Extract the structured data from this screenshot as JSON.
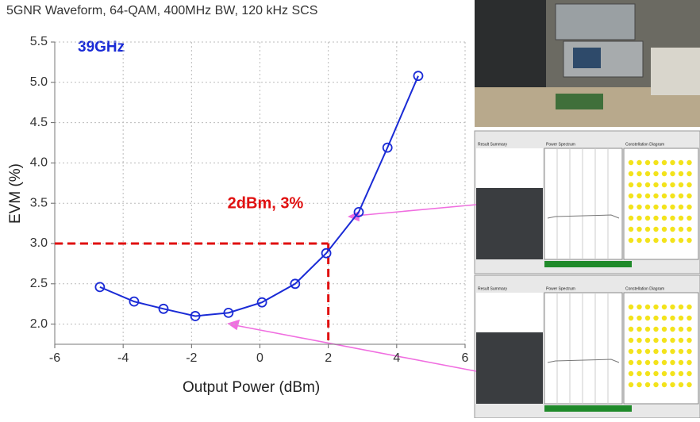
{
  "chart_data": {
    "type": "line",
    "title": "5GNR Waveform, 64-QAM, 400MHz BW, 120 kHz SCS",
    "x_label": "Output Power (dBm)",
    "y_label": "EVM (%)",
    "annotation": "39GHz",
    "reference_label": "2dBm, 3%",
    "reference": {
      "x": 2,
      "y": 3
    },
    "x": [
      -4.68,
      -3.68,
      -2.82,
      -1.89,
      -0.92,
      0.06,
      1.03,
      1.94,
      2.89,
      3.73,
      4.63
    ],
    "series": [
      {
        "color": "#1a2bd6",
        "values": [
          2.46,
          2.28,
          2.19,
          2.1,
          2.14,
          2.27,
          2.5,
          2.88,
          3.39,
          4.19,
          5.08
        ]
      }
    ],
    "xlim": [
      -6,
      6
    ],
    "xticks": [
      -6,
      -4,
      -2,
      0,
      2,
      4,
      6
    ],
    "ylim": [
      1.75,
      5.5
    ],
    "yticks": [
      {
        "value": 2,
        "label": "2.0"
      },
      2.5,
      {
        "value": 3,
        "label": "3.0"
      },
      3.5,
      {
        "value": 4,
        "label": "4.0"
      },
      4.5,
      {
        "value": 5,
        "label": "5.0"
      },
      5.5
    ],
    "grid": true
  },
  "insets": [
    "Result Summary",
    "Power Spectrum",
    "Constellation Diagram"
  ]
}
